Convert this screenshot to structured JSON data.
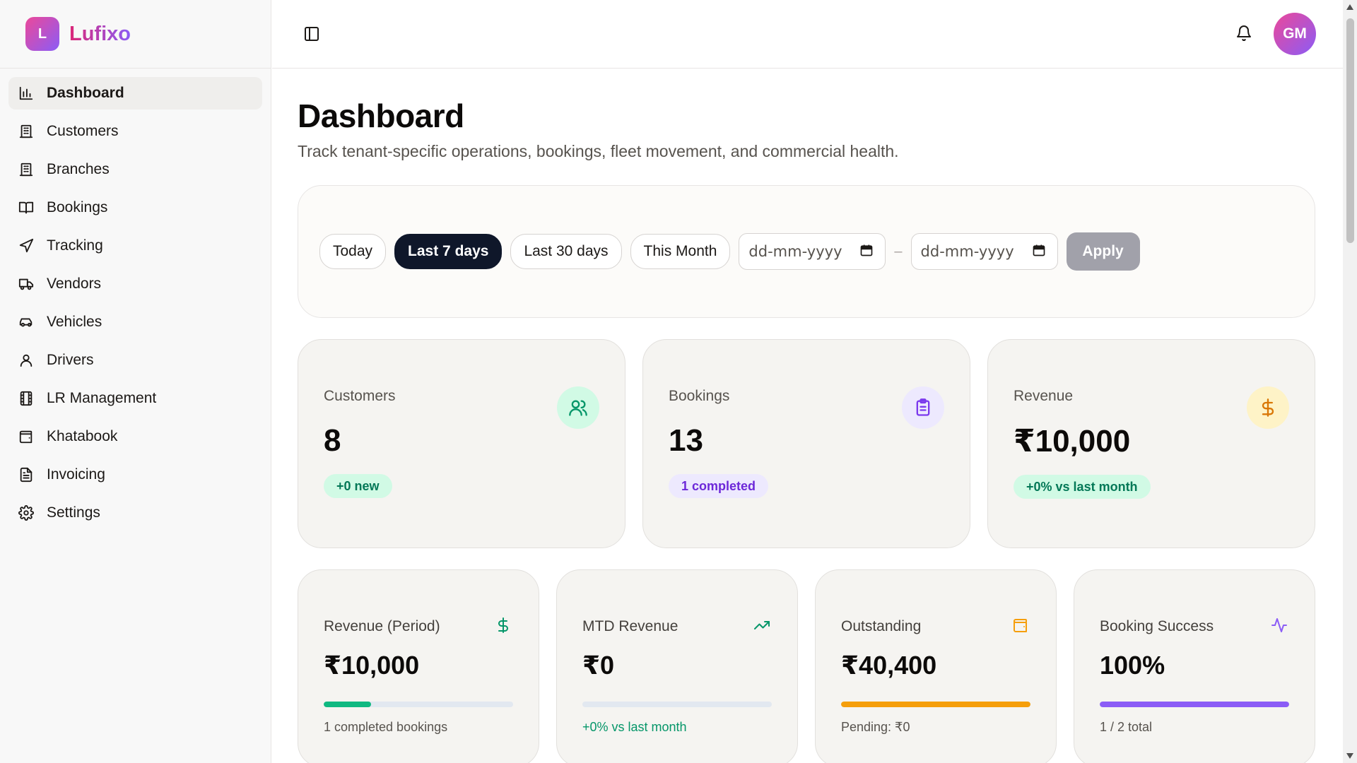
{
  "brand": {
    "logo_letter": "L",
    "name": "Lufixo"
  },
  "sidebar": {
    "items": [
      {
        "label": "Dashboard",
        "icon": "bar-chart-icon",
        "active": true
      },
      {
        "label": "Customers",
        "icon": "building-icon"
      },
      {
        "label": "Branches",
        "icon": "building-icon"
      },
      {
        "label": "Bookings",
        "icon": "book-open-icon"
      },
      {
        "label": "Tracking",
        "icon": "navigation-icon"
      },
      {
        "label": "Vendors",
        "icon": "truck-icon"
      },
      {
        "label": "Vehicles",
        "icon": "car-icon"
      },
      {
        "label": "Drivers",
        "icon": "user-icon"
      },
      {
        "label": "LR Management",
        "icon": "film-icon"
      },
      {
        "label": "Khatabook",
        "icon": "wallet-icon"
      },
      {
        "label": "Invoicing",
        "icon": "file-text-icon"
      },
      {
        "label": "Settings",
        "icon": "gear-icon"
      }
    ]
  },
  "topbar": {
    "avatar_initials": "GM"
  },
  "page": {
    "title": "Dashboard",
    "subtitle": "Track tenant-specific operations, bookings, fleet movement, and commercial health."
  },
  "filters": {
    "chips": [
      "Today",
      "Last 7 days",
      "Last 30 days",
      "This Month"
    ],
    "active_chip": "Last 7 days",
    "date_from_placeholder": "dd-mm-yyyy",
    "date_to_placeholder": "dd-mm-yyyy",
    "separator": "–",
    "apply_label": "Apply"
  },
  "stats": [
    {
      "label": "Customers",
      "value": "8",
      "badge": "+0 new",
      "icon": "users-icon"
    },
    {
      "label": "Bookings",
      "value": "13",
      "badge": "1 completed",
      "icon": "clipboard-icon"
    },
    {
      "label": "Revenue",
      "value": "₹10,000",
      "badge": "+0% vs last month",
      "icon": "dollar-icon"
    }
  ],
  "mini_stats": [
    {
      "label": "Revenue (Period)",
      "value": "₹10,000",
      "progress": 0.25,
      "color": "#10b981",
      "footer": "1 completed bookings",
      "icon": "dollar-icon"
    },
    {
      "label": "MTD Revenue",
      "value": "₹0",
      "progress": 0,
      "color": "#10b981",
      "footer": "+0% vs last month",
      "icon": "trending-up-icon"
    },
    {
      "label": "Outstanding",
      "value": "₹40,400",
      "progress": 1.0,
      "color": "#f59e0b",
      "footer": "Pending: ₹0",
      "icon": "wallet-icon"
    },
    {
      "label": "Booking Success",
      "value": "100%",
      "progress": 1.0,
      "color": "#8b5cf6",
      "footer": "1 / 2 total",
      "icon": "activity-icon"
    }
  ],
  "colors": {
    "accent": "#0f172a",
    "brand_from": "#ec4899",
    "brand_to": "#8b5cf6"
  }
}
